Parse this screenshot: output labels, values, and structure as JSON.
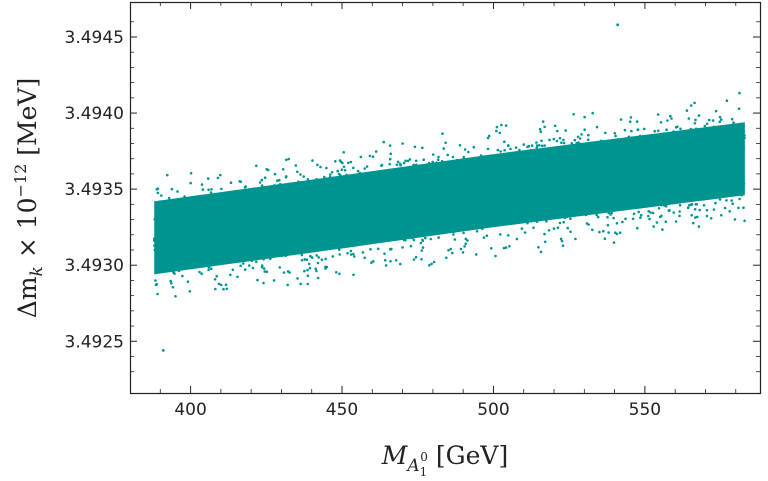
{
  "chart_data": {
    "type": "scatter",
    "title": "",
    "xlabel": {
      "main": "M",
      "sub": "A",
      "subsub": "1",
      "subsup": "0",
      "unit": "[GeV]"
    },
    "ylabel": {
      "main": "Δm",
      "sub": "k",
      "times": " × 10",
      "exp": "−12",
      "unit": " [MeV]"
    },
    "xlim": [
      380,
      588
    ],
    "ylim": [
      3.49216,
      3.49473
    ],
    "x_ticks": [
      {
        "value": 400,
        "label": "400"
      },
      {
        "value": 450,
        "label": "450"
      },
      {
        "value": 500,
        "label": "500"
      },
      {
        "value": 550,
        "label": "550"
      }
    ],
    "y_ticks": [
      {
        "value": 3.4925,
        "label": "3.4925"
      },
      {
        "value": 3.493,
        "label": "3.4930"
      },
      {
        "value": 3.4935,
        "label": "3.4935"
      },
      {
        "value": 3.494,
        "label": "3.4940"
      },
      {
        "value": 3.4945,
        "label": "3.4945"
      }
    ],
    "grid": false,
    "legend": "none",
    "point_color": "#009490",
    "series": [
      {
        "x_range": [
          388,
          583
        ],
        "trend_center": [
          {
            "x": 388,
            "y": 3.49318
          },
          {
            "x": 450,
            "y": 3.49335
          },
          {
            "x": 500,
            "y": 3.49349
          },
          {
            "x": 583,
            "y": 3.4937
          }
        ],
        "dense_band_halfwidth": 0.00024,
        "outer_spread": 0.00045,
        "extremes": {
          "min": {
            "x": 391,
            "y": 3.49244
          },
          "max": {
            "x": 541,
            "y": 3.49458
          }
        }
      }
    ]
  }
}
